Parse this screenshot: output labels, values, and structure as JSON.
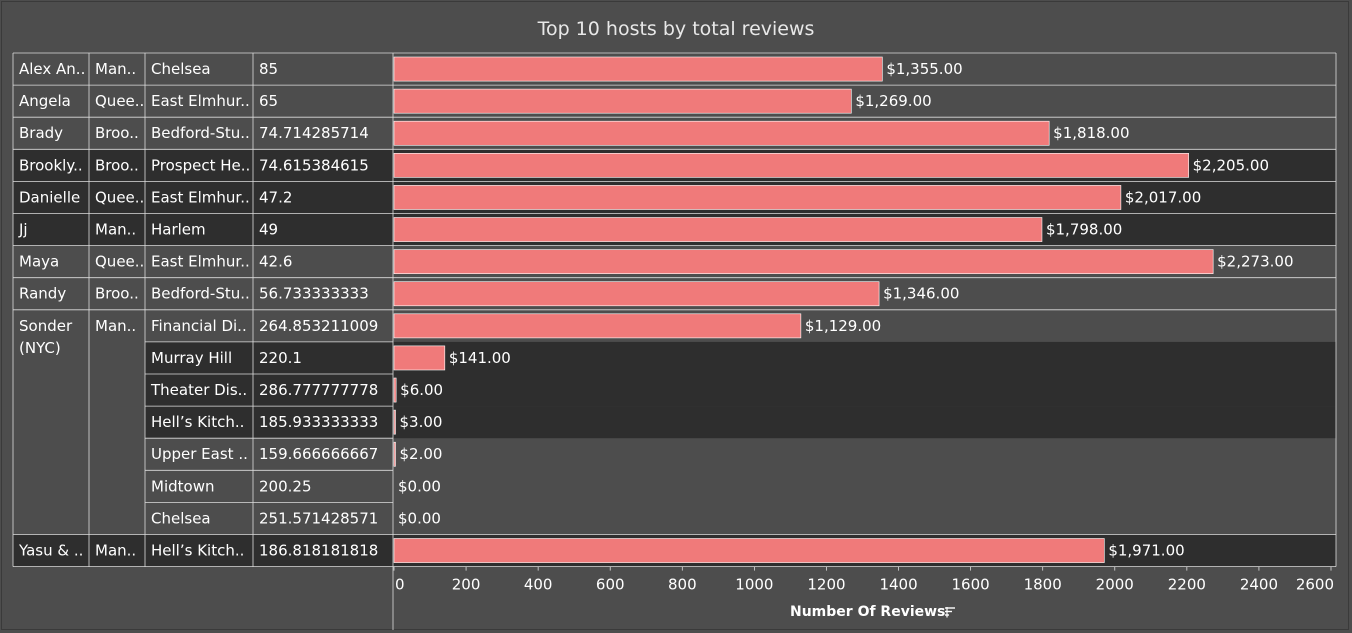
{
  "chart_data": {
    "type": "bar",
    "title": "Top 10 hosts by total reviews",
    "xlabel": "Number Of Reviews",
    "xlim": [
      0,
      2600
    ],
    "x_ticks": [
      "0",
      "200",
      "400",
      "600",
      "800",
      "1000",
      "1200",
      "1400",
      "1600",
      "1800",
      "2000",
      "2200",
      "2400",
      "2600"
    ],
    "rows": [
      {
        "host": "Alex An..",
        "borough": "Man..",
        "neighbourhood": "Chelsea",
        "avg_price": "85",
        "value": 1355,
        "label": "$1,355.00"
      },
      {
        "host": "Angela",
        "borough": "Quee..",
        "neighbourhood": "East Elmhur..",
        "avg_price": "65",
        "value": 1269,
        "label": "$1,269.00"
      },
      {
        "host": "Brady",
        "borough": "Broo..",
        "neighbourhood": "Bedford-Stu..",
        "avg_price": "74.714285714",
        "value": 1818,
        "label": "$1,818.00"
      },
      {
        "host": "Brookly..",
        "borough": "Broo..",
        "neighbourhood": "Prospect He..",
        "avg_price": "74.615384615",
        "value": 2205,
        "label": "$2,205.00"
      },
      {
        "host": "Danielle",
        "borough": "Quee..",
        "neighbourhood": "East Elmhur..",
        "avg_price": "47.2",
        "value": 2017,
        "label": "$2,017.00"
      },
      {
        "host": "Jj",
        "borough": "Man..",
        "neighbourhood": "Harlem",
        "avg_price": "49",
        "value": 1798,
        "label": "$1,798.00"
      },
      {
        "host": "Maya",
        "borough": "Quee..",
        "neighbourhood": "East Elmhur..",
        "avg_price": "42.6",
        "value": 2273,
        "label": "$2,273.00"
      },
      {
        "host": "Randy",
        "borough": "Broo..",
        "neighbourhood": "Bedford-Stu..",
        "avg_price": "56.733333333",
        "value": 1346,
        "label": "$1,346.00"
      },
      {
        "host": "Sonder (NYC)",
        "borough": "Man..",
        "neighbourhood": "Financial Di..",
        "avg_price": "264.853211009",
        "value": 1129,
        "label": "$1,129.00"
      },
      {
        "host": "",
        "borough": "",
        "neighbourhood": "Murray Hill",
        "avg_price": "220.1",
        "value": 141,
        "label": "$141.00"
      },
      {
        "host": "",
        "borough": "",
        "neighbourhood": "Theater Dis..",
        "avg_price": "286.777777778",
        "value": 6,
        "label": "$6.00"
      },
      {
        "host": "",
        "borough": "",
        "neighbourhood": "Hell’s Kitch..",
        "avg_price": "185.933333333",
        "value": 3,
        "label": "$3.00"
      },
      {
        "host": "",
        "borough": "",
        "neighbourhood": "Upper East ..",
        "avg_price": "159.666666667",
        "value": 2,
        "label": "$2.00"
      },
      {
        "host": "",
        "borough": "",
        "neighbourhood": "Midtown",
        "avg_price": "200.25",
        "value": 0,
        "label": "$0.00"
      },
      {
        "host": "",
        "borough": "",
        "neighbourhood": "Chelsea",
        "avg_price": "251.571428571",
        "value": 0,
        "label": "$0.00"
      },
      {
        "host": "Yasu & ..",
        "borough": "Man..",
        "neighbourhood": "Hell’s Kitch..",
        "avg_price": "186.818181818",
        "value": 1971,
        "label": "$1,971.00"
      }
    ],
    "host_groups": [
      {
        "name": "Alex An..",
        "rows": 1
      },
      {
        "name": "Angela",
        "rows": 1
      },
      {
        "name": "Brady",
        "rows": 1
      },
      {
        "name": "Brookly..",
        "rows": 1
      },
      {
        "name": "Danielle",
        "rows": 1
      },
      {
        "name": "Jj",
        "rows": 1
      },
      {
        "name": "Maya",
        "rows": 1
      },
      {
        "name": "Randy",
        "rows": 1
      },
      {
        "name": "Sonder (NYC)",
        "rows": 7
      },
      {
        "name": "Yasu & ..",
        "rows": 1
      }
    ],
    "row_bands": [
      "light",
      "light",
      "light",
      "dark",
      "dark",
      "dark",
      "light",
      "light",
      "light",
      "dark",
      "dark",
      "dark",
      "light",
      "light",
      "light",
      "dark"
    ],
    "colors": {
      "background": "#4d4d4d",
      "band_dark": "#2e2e2e",
      "bar": "#f07a7a",
      "grid_line": "#dddddd",
      "text": "#ffffff"
    },
    "grid": false,
    "legend": "none"
  }
}
